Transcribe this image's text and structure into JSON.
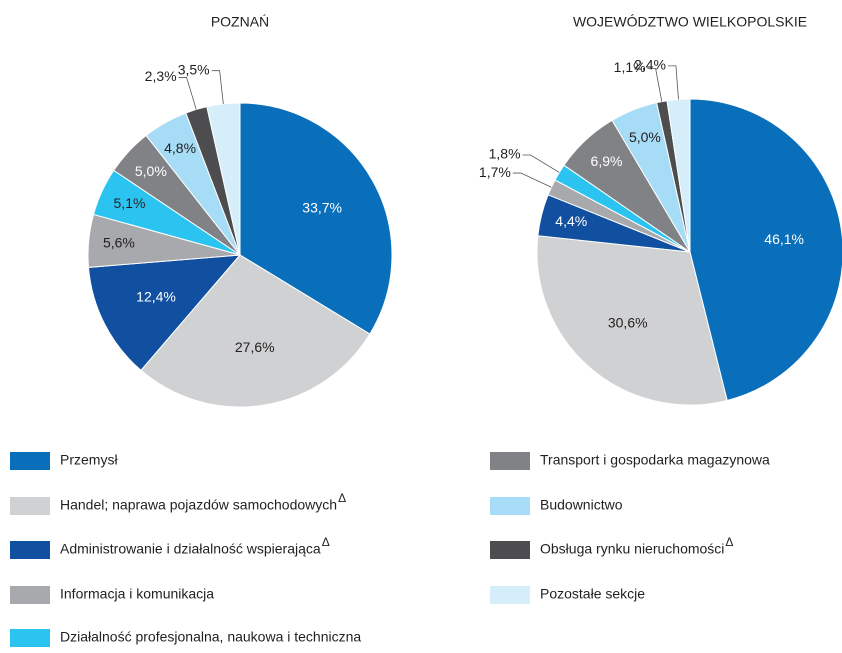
{
  "chart_data": [
    {
      "type": "pie",
      "title": "POZNAŃ",
      "values": [
        33.7,
        27.6,
        12.4,
        5.6,
        5.1,
        5.0,
        4.8,
        2.3,
        3.5
      ],
      "value_labels": [
        "33,7%",
        "27,6%",
        "12,4%",
        "5,6%",
        "5,1%",
        "5,0%",
        "4,8%",
        "2,3%",
        "3,5%"
      ]
    },
    {
      "type": "pie",
      "title": "WOJEWÓDZTWO WIELKOPOLSKIE",
      "values": [
        46.1,
        30.6,
        4.4,
        1.7,
        1.8,
        6.9,
        5.0,
        1.1,
        2.4
      ],
      "value_labels": [
        "46,1%",
        "30,6%",
        "4,4%",
        "1,7%",
        "1,8%",
        "6,9%",
        "5,0%",
        "1,1%",
        "2,4%"
      ]
    }
  ],
  "legend": {
    "categories": [
      "Przemysł",
      "Handel; naprawa pojazdów samochodowych",
      "Administrowanie i działalność wspierająca",
      "Informacja i komunikacja",
      "Działalność profesjonalna, naukowa i techniczna",
      "Transport i gospodarka magazynowa",
      "Budownictwo",
      "Obsługa rynku nieruchomości",
      "Pozostałe sekcje"
    ],
    "colors": [
      "#0a6fba",
      "#d0d1d3",
      "#1150a0",
      "#a7a9ac",
      "#2bc4f0",
      "#808285",
      "#a6dcf5",
      "#4d4d4f",
      "#d6eefa"
    ],
    "superscript": "Δ",
    "superscript_on": [
      1,
      2,
      7
    ]
  }
}
